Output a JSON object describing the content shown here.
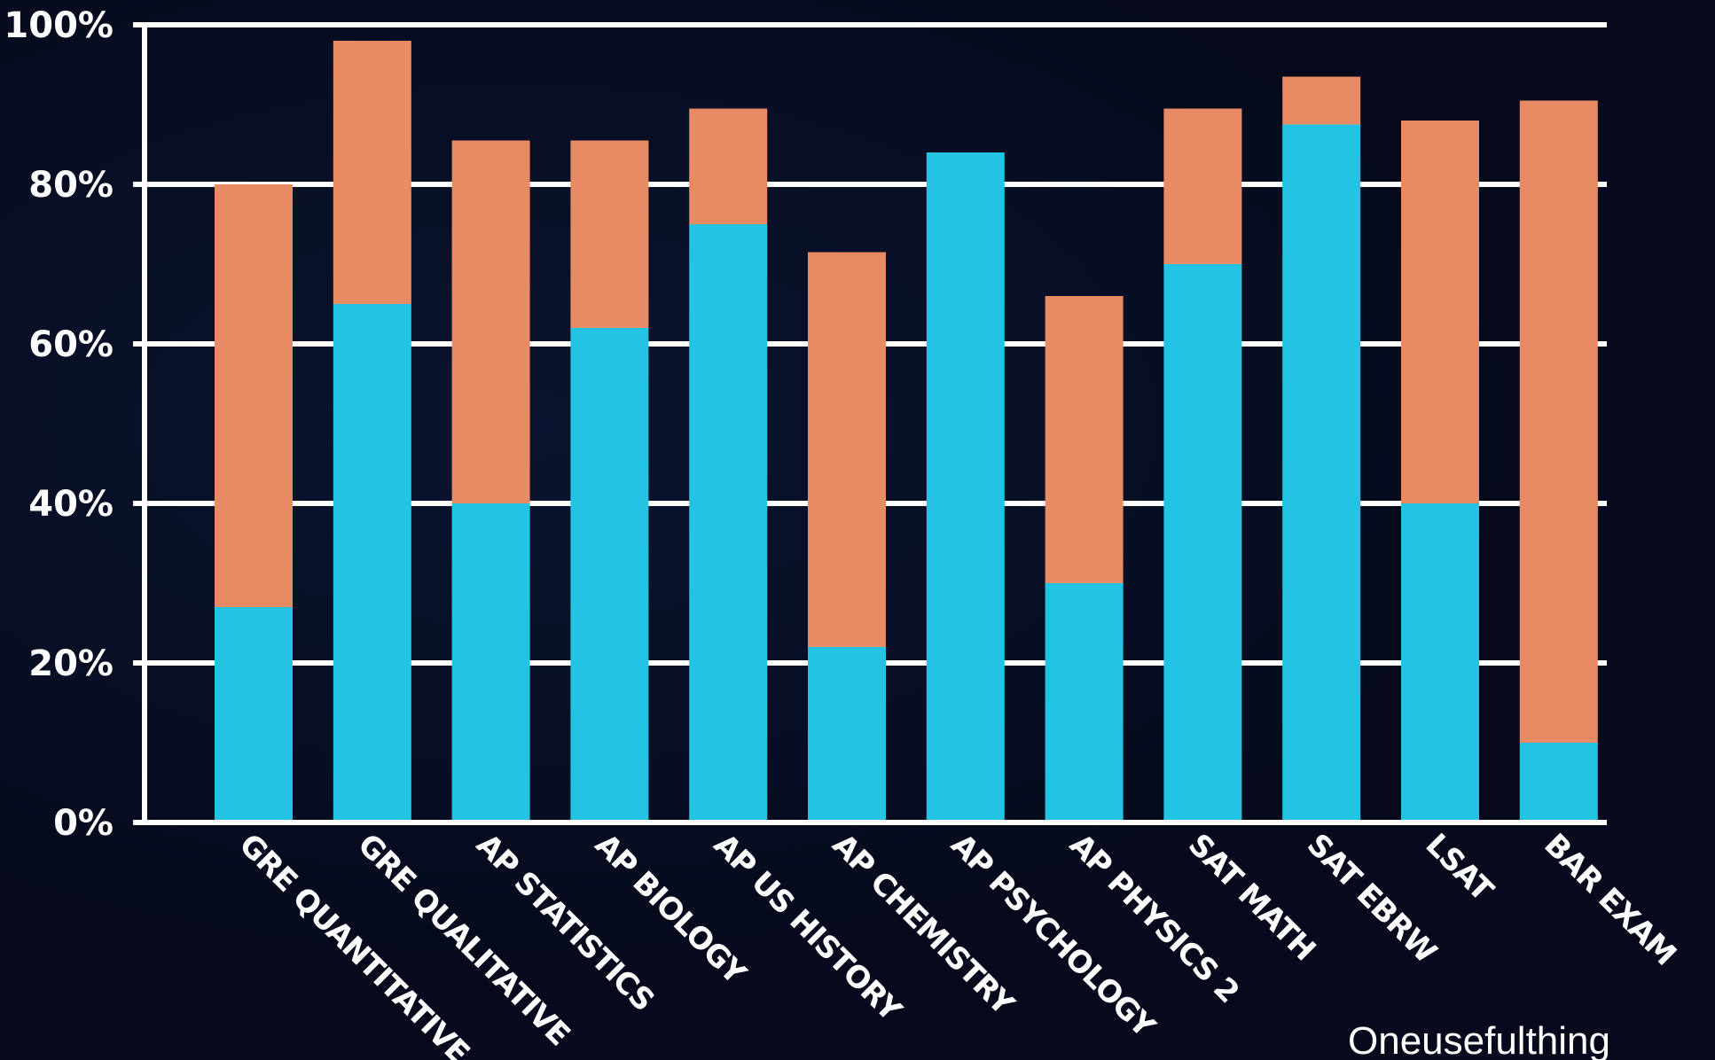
{
  "chart_data": {
    "type": "bar",
    "stacked": true,
    "categories": [
      "GRE QUANTITATIVE",
      "GRE QUALITATIVE",
      "AP STATISTICS",
      "AP BIOLOGY",
      "AP US HISTORY",
      "AP CHEMISTRY",
      "AP PSYCHOLOGY",
      "AP PHYSICS 2",
      "SAT MATH",
      "SAT EBRW",
      "LSAT",
      "BAR EXAM"
    ],
    "series": [
      {
        "color": "#22c3e3",
        "values": [
          27,
          65,
          40,
          62,
          75,
          22,
          84,
          30,
          70,
          87.5,
          40,
          10
        ]
      },
      {
        "color": "#e88a64",
        "values": [
          53,
          33,
          45.5,
          23.5,
          14.5,
          49.5,
          0,
          36,
          19.5,
          6,
          48,
          80.5
        ]
      }
    ],
    "ylim": [
      0,
      100
    ],
    "yticks": [
      "0%",
      "20%",
      "40%",
      "60%",
      "80%",
      "100%"
    ],
    "ytick_values": [
      0,
      20,
      40,
      60,
      80,
      100
    ],
    "grid": true,
    "title": "",
    "xlabel": "",
    "ylabel": ""
  },
  "watermark": "Oneusefulthing"
}
